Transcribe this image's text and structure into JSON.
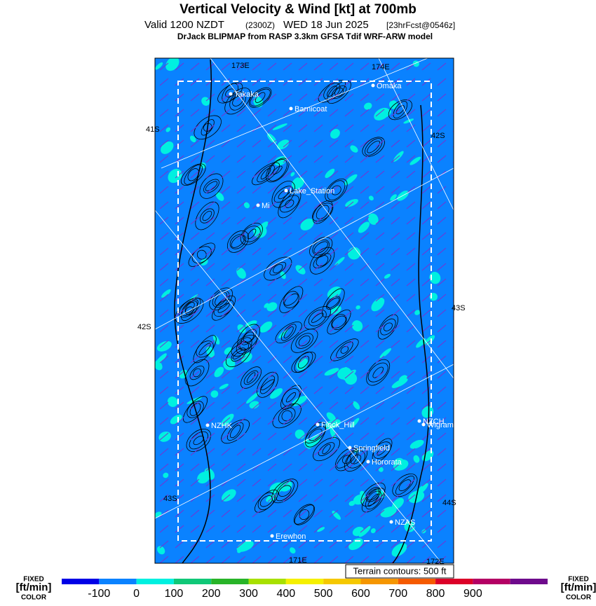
{
  "header": {
    "title": "Vertical Velocity & Wind [kt] at 700mb",
    "valid": "Valid 1200 NZDT",
    "utc": "(2300Z)",
    "date": "WED 18 Jun 2025",
    "forecast": "[23hrFcst@0546z]",
    "model": "DrJack BLIPMAP from RASP 3.3km GFSA Tdif WRF-ARW model"
  },
  "places": [
    "Takaka",
    "Barnicoat",
    "Omaka",
    "Lake_Station",
    "Mi",
    "NZHK",
    "Flock_Hill",
    "NZCH",
    "Wigram",
    "Springfield",
    "Hororata",
    "NZAS",
    "Erewhon"
  ],
  "grid_labels": [
    "173E",
    "174E",
    "41S",
    "42S",
    "43S",
    "42S",
    "43S",
    "44S",
    "171E",
    "172E"
  ],
  "terrain_note": "Terrain contours: 500 ft",
  "colorbar": {
    "side_label": [
      "FIXED",
      "[ft/min]",
      "COLOR"
    ],
    "colors": [
      "#0000e6",
      "#0a82ff",
      "#00f0e0",
      "#10c878",
      "#28b428",
      "#a8e000",
      "#f5f000",
      "#f5c800",
      "#f59600",
      "#f55a00",
      "#dc0028",
      "#b40064",
      "#6e0a8c"
    ],
    "ticks": [
      -100,
      0,
      100,
      200,
      300,
      400,
      500,
      600,
      700,
      800,
      900
    ]
  }
}
